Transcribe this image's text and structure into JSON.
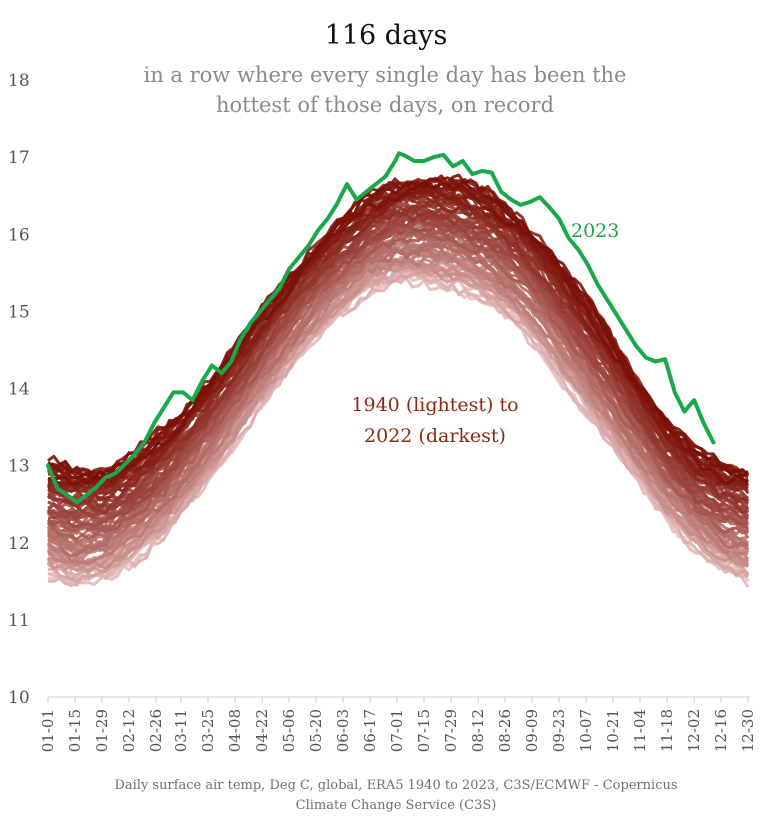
{
  "title": "116 days",
  "subtitle": "in a row where every single day has been the hottest of those days, on record",
  "source": "Daily surface air temp, Deg C, global, ERA5 1940 to 2023, C3S/ECMWF - Copernicus Climate Change Service (C3S)",
  "colors": {
    "current_year": "#1aa84a",
    "historic_light": "#e8c2c0",
    "historic_dark": "#7a1006",
    "axis": "#cccccc",
    "text_gray": "#8a8a8a"
  },
  "chart_data": {
    "type": "line",
    "title": "116 days",
    "subtitle": "in a row where every single day has been the hottest of those days, on record",
    "xlabel": "",
    "ylabel": "",
    "ylim": [
      10,
      18
    ],
    "yticks": [
      10,
      11,
      12,
      13,
      14,
      15,
      16,
      17,
      18
    ],
    "x_tick_labels": [
      "01-01",
      "01-15",
      "01-29",
      "02-12",
      "02-26",
      "03-11",
      "03-25",
      "04-08",
      "04-22",
      "05-06",
      "05-20",
      "06-03",
      "06-17",
      "07-01",
      "07-15",
      "07-29",
      "08-12",
      "08-26",
      "09-09",
      "09-23",
      "10-07",
      "10-21",
      "11-04",
      "11-18",
      "12-02",
      "12-16",
      "12-30"
    ],
    "x_tick_days": [
      0,
      14,
      28,
      42,
      56,
      69,
      83,
      97,
      111,
      125,
      139,
      153,
      167,
      181,
      195,
      209,
      223,
      237,
      251,
      265,
      279,
      293,
      307,
      321,
      335,
      349,
      363
    ],
    "grid": false,
    "legend": "inline labels",
    "annotations": {
      "current_year_label": "2023",
      "range_label_line1": "1940 (lightest) to",
      "range_label_line2": "2022 (darkest)"
    },
    "historic_envelope": {
      "description_days": [
        0,
        14,
        30,
        45,
        60,
        75,
        90,
        105,
        120,
        135,
        150,
        165,
        180,
        195,
        205,
        215,
        230,
        245,
        260,
        275,
        290,
        305,
        320,
        335,
        350,
        364
      ],
      "lightest_1940": [
        11.6,
        11.45,
        11.55,
        11.8,
        12.1,
        12.55,
        13.05,
        13.6,
        14.1,
        14.55,
        14.95,
        15.25,
        15.4,
        15.4,
        15.35,
        15.3,
        15.1,
        14.8,
        14.35,
        13.85,
        13.35,
        12.85,
        12.35,
        11.95,
        11.65,
        11.5
      ],
      "darkest_2022": [
        13.05,
        12.95,
        12.95,
        13.15,
        13.45,
        13.85,
        14.3,
        14.8,
        15.3,
        15.75,
        16.15,
        16.45,
        16.65,
        16.72,
        16.72,
        16.68,
        16.5,
        16.2,
        15.8,
        15.3,
        14.75,
        14.15,
        13.6,
        13.2,
        13.0,
        12.95
      ]
    },
    "series": [
      {
        "name": "2023",
        "x": [
          0,
          5,
          10,
          15,
          20,
          25,
          30,
          35,
          40,
          45,
          50,
          55,
          60,
          65,
          70,
          75,
          80,
          85,
          90,
          95,
          100,
          105,
          110,
          115,
          120,
          125,
          130,
          135,
          140,
          145,
          150,
          155,
          160,
          165,
          170,
          175,
          180,
          182,
          185,
          190,
          195,
          200,
          205,
          210,
          215,
          220,
          225,
          230,
          235,
          240,
          245,
          250,
          255,
          260,
          265,
          270,
          275,
          280,
          285,
          290,
          295,
          300,
          305,
          310,
          315,
          320,
          325,
          330,
          335,
          340,
          345
        ],
        "y": [
          13.0,
          12.7,
          12.62,
          12.52,
          12.62,
          12.72,
          12.85,
          12.9,
          13.02,
          13.15,
          13.3,
          13.55,
          13.75,
          13.95,
          13.95,
          13.85,
          14.1,
          14.3,
          14.2,
          14.35,
          14.65,
          14.85,
          15.0,
          15.15,
          15.3,
          15.55,
          15.7,
          15.85,
          16.05,
          16.2,
          16.4,
          16.65,
          16.45,
          16.55,
          16.65,
          16.75,
          16.95,
          17.05,
          17.02,
          16.95,
          16.95,
          17.0,
          17.03,
          16.88,
          16.95,
          16.78,
          16.82,
          16.8,
          16.55,
          16.45,
          16.38,
          16.42,
          16.48,
          16.35,
          16.2,
          15.95,
          15.8,
          15.6,
          15.35,
          15.15,
          14.95,
          14.75,
          14.55,
          14.4,
          14.35,
          14.38,
          13.95,
          13.7,
          13.85,
          13.55,
          13.3
        ]
      }
    ]
  }
}
